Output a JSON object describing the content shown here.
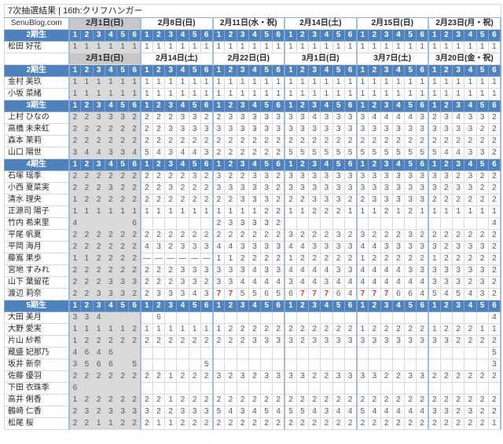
{
  "title": "7次抽選結果 | 16th:クリフハンガー",
  "site_label": "SenuBlog.com",
  "dash_display": "—",
  "red_digit": "7",
  "slots": [
    "1",
    "2",
    "3",
    "4",
    "5",
    "6"
  ],
  "colors": {
    "header_blue": "#4f81bd",
    "group_border": "#a3bedd",
    "gray_date": "#c7c7c7",
    "gray_cell": "#d9d9d9",
    "number_gray": "#595959",
    "highlight_red": "#d04038"
  },
  "blocks": [
    {
      "corner": "SenuBlog.com",
      "dates": [
        {
          "label": "2月1日(日)",
          "gray": true
        },
        {
          "label": "2月8日(日)"
        },
        {
          "label": "2月11日(水・祝)"
        },
        {
          "label": "2月14日(土)"
        },
        {
          "label": "2月15日(日)"
        },
        {
          "label": "2月23日(月・祝)"
        }
      ],
      "sections": [
        {
          "gen": "2期生",
          "members": [
            {
              "name": "松田 好花",
              "v": "111111 111111 111111 111111 111111 111111"
            }
          ]
        }
      ]
    },
    {
      "corner": "",
      "dates": [
        {
          "label": "2月1日(日)",
          "gray": true
        },
        {
          "label": "2月14日(土)"
        },
        {
          "label": "2月22日(日)"
        },
        {
          "label": "3月1日(日)"
        },
        {
          "label": "3月7日(土)"
        },
        {
          "label": "3月20日(金・祝)"
        }
      ],
      "sections": [
        {
          "gen": "2期生",
          "members": [
            {
              "name": "金村 美玖",
              "v": "111111 111111 111111 111111 111111 111111"
            },
            {
              "name": "小坂 菜緒",
              "v": "111111 111111 111111 111111 111111 111111"
            }
          ]
        },
        {
          "gen": "3期生",
          "members": [
            {
              "name": "上村 ひなの",
              "v": "223332 222332 233333 334333 344443 234332"
            },
            {
              "name": "高橋 未来虹",
              "v": "222222 223333 333333 333333 333333 333322"
            },
            {
              "name": "森本 茉莉",
              "v": "222222 222222 222222 222222 222222 222222"
            },
            {
              "name": "山口 陽世",
              "v": "344334 543443 222222 555555 555555 544332"
            }
          ]
        },
        {
          "gen": "4期生",
          "members": [
            {
              "name": "石塚 瑶季",
              "v": "222222 222232 322332 333333 333333 332322"
            },
            {
              "name": "小西 夏菜実",
              "v": "222322 223222 333332 333333 333333 323322"
            },
            {
              "name": "清水 理央",
              "v": "122222 222222 223332 223332 233333 222222"
            },
            {
              "name": "正源司 陽子",
              "v": "111111 111111 111122 112221 112121 111111"
            },
            {
              "name": "竹内 希来里",
              "v": "4....6 ...... 233332 ...... ...... .....4"
            },
            {
              "name": "平尾 帆夏",
              "v": "222222 222222 222222 322232 322232 222222"
            },
            {
              "name": "平岡 海月",
              "v": "222222 432333 443333 443333 443333 323332"
            },
            {
              "name": "藤嶌 果歩",
              "v": "112222 ------ 112222 122222 122222 122222"
            },
            {
              "name": "宮地 すみれ",
              "v": "222222 222333 333433 444433 444433 333332"
            },
            {
              "name": "山下 葉留花",
              "v": "222333 222332 334444 344344 444444 333232"
            },
            {
              "name": "渡辺 莉奈",
              "v": "223332 233343 775565 677764 777664 545432"
            }
          ]
        },
        {
          "gen": "5期生",
          "members": [
            {
              "name": "大田 美月",
              "v": "334... .6.... ...... ...... ...... .....4"
            },
            {
              "name": "大野 愛実",
              "v": "111112 111111 122222 222222 122222 122211"
            },
            {
              "name": "片山 紗希",
              "v": "122222 222222 222333 323333 333333 332222"
            },
            {
              "name": "蔵盛 妃那乃",
              "v": "4646.. ...... ...... ...... ...... .....5"
            },
            {
              "name": "坂井 新奈",
              "v": "3566.5 .....5 ...... ...... ...... .....3"
            },
            {
              "name": "佐藤 優羽",
              "v": "222222 221222 323233 332233 332233 222222"
            },
            {
              "name": "下田 衣珠季",
              "v": "6..... ...... ...... ...... ...... ......"
            },
            {
              "name": "高井 俐香",
              "v": "122222 221222 222222 222222 222222 222222"
            },
            {
              "name": "鶴崎 仁香",
              "v": "232333 322333 543454 554344 544444 332322"
            },
            {
              "name": "松尾 桜",
              "v": "221122 211222 222222 222222 222222 222221"
            }
          ]
        }
      ]
    }
  ]
}
